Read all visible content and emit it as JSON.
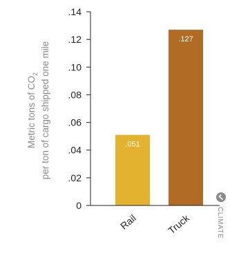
{
  "chart_data": {
    "type": "bar",
    "categories": [
      "Rail",
      "Truck"
    ],
    "values": [
      0.051,
      0.127
    ],
    "data_labels": [
      ".051",
      ".127"
    ],
    "colors": [
      "#e3b22e",
      "#b06b24"
    ],
    "ylabel_line1": "Metric tons of CO",
    "ylabel_sub": "2",
    "ylabel_line2": "per ton of cargo shipped one mile",
    "ylim": [
      0,
      0.14
    ],
    "yticks": [
      0,
      0.02,
      0.04,
      0.06,
      0.08,
      0.1,
      0.12,
      0.14
    ],
    "ytick_labels": [
      "0",
      ".02",
      ".04",
      ".06",
      ".08",
      ".10",
      ".12",
      ".14"
    ],
    "grid": false,
    "axis_color": "#222222"
  },
  "watermark": {
    "text": "CLIMATE",
    "icon": "check-circle-icon"
  }
}
